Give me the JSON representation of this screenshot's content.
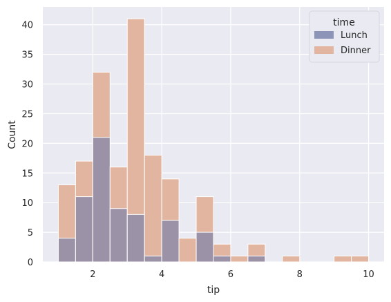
{
  "chart_data": {
    "type": "bar",
    "subtype": "stacked-overlay-histogram",
    "xlabel": "tip",
    "ylabel": "Count",
    "xlim": [
      0.55,
      10.45
    ],
    "ylim": [
      0,
      43
    ],
    "x_ticks": [
      2,
      4,
      6,
      8,
      10
    ],
    "y_ticks": [
      0,
      5,
      10,
      15,
      20,
      25,
      30,
      35,
      40
    ],
    "grid": true,
    "legend": {
      "title": "time",
      "placement": "top-right"
    },
    "bins": [
      [
        1.0,
        1.5
      ],
      [
        1.5,
        2.0
      ],
      [
        2.0,
        2.5
      ],
      [
        2.5,
        3.0
      ],
      [
        3.0,
        3.5
      ],
      [
        3.5,
        4.0
      ],
      [
        4.0,
        4.5
      ],
      [
        4.5,
        5.0
      ],
      [
        5.0,
        5.5
      ],
      [
        5.5,
        6.0
      ],
      [
        6.0,
        6.5
      ],
      [
        6.5,
        7.0
      ],
      [
        7.0,
        7.5
      ],
      [
        7.5,
        8.0
      ],
      [
        8.0,
        8.5
      ],
      [
        8.5,
        9.0
      ],
      [
        9.0,
        9.5
      ],
      [
        9.5,
        10.0
      ]
    ],
    "series": [
      {
        "name": "Lunch",
        "color": "#8c94b8",
        "values": [
          4,
          11,
          21,
          9,
          8,
          1,
          7,
          0,
          5,
          1,
          0,
          1,
          0,
          0,
          0,
          0,
          0,
          0
        ]
      },
      {
        "name": "Dinner",
        "color": "#e1b5a0",
        "values": [
          13,
          17,
          32,
          16,
          41,
          18,
          14,
          4,
          11,
          3,
          1,
          3,
          0,
          1,
          0,
          0,
          1,
          1
        ]
      }
    ],
    "colors": {
      "background": "#eaeaf2",
      "grid": "#ffffff",
      "overlap": "#9b92a8",
      "edge": "#ffffff"
    }
  }
}
